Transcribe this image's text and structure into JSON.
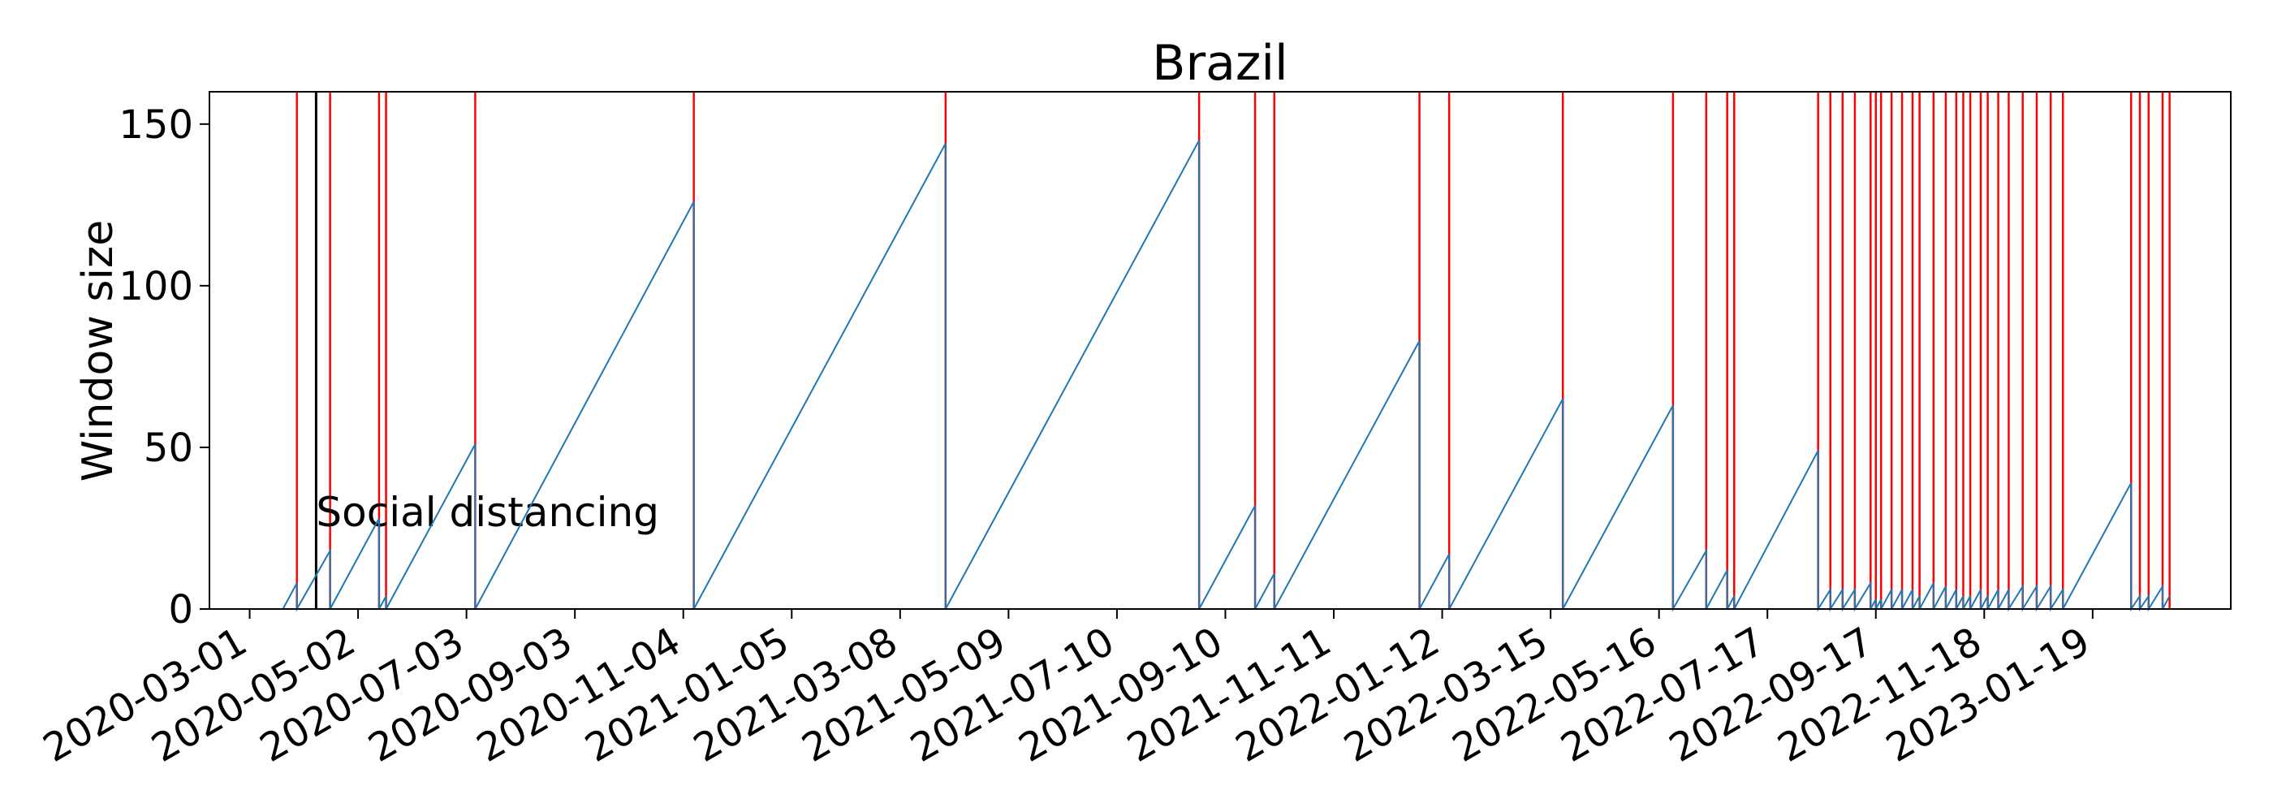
{
  "chart_data": {
    "type": "line",
    "title": "Brazil",
    "xlabel": "",
    "ylabel": "Window size",
    "ylim": [
      0,
      160
    ],
    "xlim": [
      "2020-02-07",
      "2023-04-08"
    ],
    "grid": false,
    "y_ticks": [
      0,
      50,
      100,
      150
    ],
    "x_ticks": [
      "2020-03-01",
      "2020-05-02",
      "2020-07-03",
      "2020-09-03",
      "2020-11-04",
      "2021-01-05",
      "2021-03-08",
      "2021-05-09",
      "2021-07-10",
      "2021-09-10",
      "2021-11-11",
      "2022-01-12",
      "2022-03-15",
      "2022-05-16",
      "2022-07-17",
      "2022-09-17",
      "2022-11-18",
      "2023-01-19"
    ],
    "colors": {
      "series": "#1f77b4",
      "changepoint": "#ff0000",
      "event": "#000000"
    },
    "series": [
      {
        "values": [
          [
            "2020-03-20",
            0
          ],
          [
            "2020-03-28",
            8
          ],
          [
            "2020-03-28",
            0
          ],
          [
            "2020-04-16",
            18
          ],
          [
            "2020-04-16",
            0
          ],
          [
            "2020-05-14",
            28
          ],
          [
            "2020-05-14",
            0
          ],
          [
            "2020-05-18",
            4
          ],
          [
            "2020-05-18",
            0
          ],
          [
            "2020-07-08",
            51
          ],
          [
            "2020-07-08",
            0
          ],
          [
            "2020-11-10",
            126
          ],
          [
            "2020-11-10",
            0
          ],
          [
            "2021-04-03",
            144
          ],
          [
            "2021-04-03",
            0
          ],
          [
            "2021-08-26",
            145
          ],
          [
            "2021-08-26",
            0
          ],
          [
            "2021-09-27",
            32
          ],
          [
            "2021-09-27",
            0
          ],
          [
            "2021-10-08",
            11
          ],
          [
            "2021-10-08",
            0
          ],
          [
            "2021-12-30",
            83
          ],
          [
            "2021-12-30",
            0
          ],
          [
            "2022-01-16",
            17
          ],
          [
            "2022-01-16",
            0
          ],
          [
            "2022-03-22",
            65
          ],
          [
            "2022-03-22",
            0
          ],
          [
            "2022-05-24",
            63
          ],
          [
            "2022-05-24",
            0
          ],
          [
            "2022-06-12",
            18
          ],
          [
            "2022-06-12",
            0
          ],
          [
            "2022-06-24",
            12
          ],
          [
            "2022-06-24",
            0
          ],
          [
            "2022-06-28",
            4
          ],
          [
            "2022-06-28",
            0
          ],
          [
            "2022-08-15",
            49
          ],
          [
            "2022-08-15",
            0
          ],
          [
            "2022-08-22",
            6
          ],
          [
            "2022-08-22",
            0
          ],
          [
            "2022-08-29",
            6
          ],
          [
            "2022-08-29",
            0
          ],
          [
            "2022-09-05",
            6
          ],
          [
            "2022-09-05",
            0
          ],
          [
            "2022-09-14",
            8
          ],
          [
            "2022-09-14",
            0
          ],
          [
            "2022-09-17",
            3
          ],
          [
            "2022-09-17",
            0
          ],
          [
            "2022-09-20",
            3
          ],
          [
            "2022-09-20",
            0
          ],
          [
            "2022-09-26",
            6
          ],
          [
            "2022-09-26",
            0
          ],
          [
            "2022-10-02",
            6
          ],
          [
            "2022-10-02",
            0
          ],
          [
            "2022-10-08",
            6
          ],
          [
            "2022-10-08",
            0
          ],
          [
            "2022-10-12",
            4
          ],
          [
            "2022-10-12",
            0
          ],
          [
            "2022-10-20",
            8
          ],
          [
            "2022-10-20",
            0
          ],
          [
            "2022-10-27",
            7
          ],
          [
            "2022-10-27",
            0
          ],
          [
            "2022-11-02",
            6
          ],
          [
            "2022-11-02",
            0
          ],
          [
            "2022-11-06",
            4
          ],
          [
            "2022-11-06",
            0
          ],
          [
            "2022-11-10",
            4
          ],
          [
            "2022-11-10",
            0
          ],
          [
            "2022-11-16",
            6
          ],
          [
            "2022-11-16",
            0
          ],
          [
            "2022-11-20",
            4
          ],
          [
            "2022-11-20",
            0
          ],
          [
            "2022-11-26",
            6
          ],
          [
            "2022-11-26",
            0
          ],
          [
            "2022-12-02",
            6
          ],
          [
            "2022-12-02",
            0
          ],
          [
            "2022-12-10",
            7
          ],
          [
            "2022-12-10",
            0
          ],
          [
            "2022-12-18",
            7
          ],
          [
            "2022-12-18",
            0
          ],
          [
            "2022-12-26",
            7
          ],
          [
            "2022-12-26",
            0
          ],
          [
            "2023-01-02",
            6
          ],
          [
            "2023-01-02",
            0
          ],
          [
            "2023-02-10",
            39
          ],
          [
            "2023-02-10",
            0
          ],
          [
            "2023-02-15",
            4
          ],
          [
            "2023-02-15",
            0
          ],
          [
            "2023-02-20",
            4
          ],
          [
            "2023-02-20",
            0
          ],
          [
            "2023-02-28",
            7
          ],
          [
            "2023-02-28",
            0
          ],
          [
            "2023-03-04",
            4
          ]
        ]
      }
    ],
    "changepoints": [
      "2020-03-28",
      "2020-04-16",
      "2020-05-14",
      "2020-05-18",
      "2020-07-08",
      "2020-11-10",
      "2021-04-03",
      "2021-08-26",
      "2021-09-27",
      "2021-10-08",
      "2021-12-30",
      "2022-01-16",
      "2022-03-22",
      "2022-05-24",
      "2022-06-12",
      "2022-06-24",
      "2022-06-28",
      "2022-08-15",
      "2022-08-22",
      "2022-08-29",
      "2022-09-05",
      "2022-09-14",
      "2022-09-17",
      "2022-09-20",
      "2022-09-26",
      "2022-10-02",
      "2022-10-08",
      "2022-10-12",
      "2022-10-20",
      "2022-10-27",
      "2022-11-02",
      "2022-11-06",
      "2022-11-10",
      "2022-11-16",
      "2022-11-20",
      "2022-11-26",
      "2022-12-02",
      "2022-12-10",
      "2022-12-18",
      "2022-12-26",
      "2023-01-02",
      "2023-02-10",
      "2023-02-15",
      "2023-02-20",
      "2023-02-28",
      "2023-03-04"
    ],
    "annotations": [
      {
        "date": "2020-04-08",
        "text": "Social distancing"
      }
    ]
  }
}
